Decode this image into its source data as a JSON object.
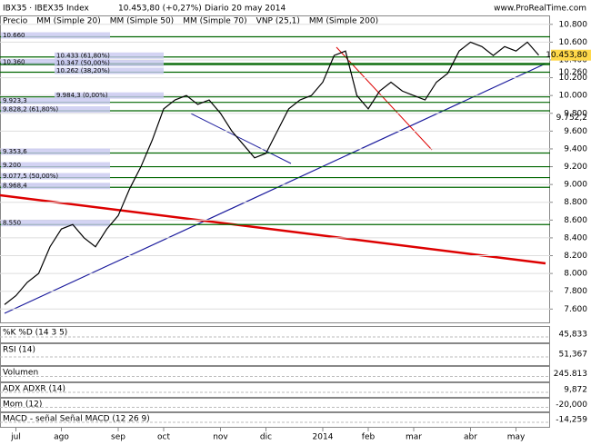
{
  "header": {
    "symbol": "IBX35 · IBEX35 Index",
    "price": "10.453,80 (+0,27%)",
    "date": "Diario 20 may 2014",
    "site": "www.ProRealTime.com"
  },
  "legend": [
    "Precio",
    "MM (Simple 20)",
    "MM (Simple 50)",
    "MM (Simple 70)",
    "VNP (25,1)",
    "MM (Simple 200)"
  ],
  "chart_data": {
    "type": "line",
    "color": "#000000",
    "categories": [
      null,
      "jul",
      null,
      null,
      null,
      "ago",
      null,
      null,
      null,
      null,
      "sep",
      null,
      null,
      null,
      "oct",
      null,
      null,
      null,
      null,
      "nov",
      null,
      null,
      null,
      "dic",
      null,
      null,
      null,
      null,
      "2014",
      null,
      null,
      null,
      "feb",
      null,
      null,
      null,
      "mar",
      null,
      null,
      null,
      null,
      "abr",
      null,
      null,
      null,
      "may",
      null,
      null
    ],
    "values": [
      7650,
      7750,
      7900,
      8000,
      8300,
      8500,
      8550,
      8400,
      8300,
      8500,
      8650,
      8950,
      9200,
      9500,
      9850,
      9950,
      10000,
      9900,
      9950,
      9800,
      9600,
      9450,
      9300,
      9350,
      9600,
      9850,
      9950,
      10000,
      10150,
      10450,
      10500,
      10000,
      9850,
      10050,
      10150,
      10050,
      10000,
      9950,
      10150,
      10250,
      10500,
      10600,
      10550,
      10450,
      10550,
      10500,
      10600,
      10453.8
    ],
    "value_labels": [
      null,
      null,
      null,
      null,
      null,
      null,
      null,
      null,
      null,
      null,
      null,
      null,
      null,
      null,
      null,
      null,
      null,
      null,
      null,
      null,
      null,
      null,
      null,
      null,
      null,
      null,
      null,
      null,
      null,
      null,
      null,
      null,
      null,
      null,
      null,
      null,
      null,
      null,
      null,
      null,
      null,
      null,
      null,
      null,
      null,
      null,
      null,
      "10.453,80"
    ],
    "ylim": [
      7450,
      10900
    ],
    "yticks": [
      {
        "value": 7600,
        "label": "7.600"
      },
      {
        "value": 7800,
        "label": "7.800"
      },
      {
        "value": 8000,
        "label": "8.000"
      },
      {
        "value": 8200,
        "label": "8.200"
      },
      {
        "value": 8400,
        "label": "8.400"
      },
      {
        "value": 8600,
        "label": "8.600"
      },
      {
        "value": 8800,
        "label": "8.800"
      },
      {
        "value": 9000,
        "label": "9.000"
      },
      {
        "value": 9200,
        "label": "9.200"
      },
      {
        "value": 9400,
        "label": "9.400"
      },
      {
        "value": 9600,
        "label": "9.600"
      },
      {
        "value": 9800,
        "label": "9.800"
      },
      {
        "value": 10000,
        "label": "10.000"
      },
      {
        "value": 10200,
        "label": "10.200"
      },
      {
        "value": 10400,
        "label": "10.400"
      },
      {
        "value": 10600,
        "label": "10.600"
      },
      {
        "value": 10800,
        "label": "10.800"
      }
    ],
    "grid": true,
    "levels": [
      {
        "value": 10660,
        "label": "10.660"
      },
      {
        "value": 10433,
        "label": "10.433 (61,80%)"
      },
      {
        "value": 10360,
        "label": "10.360"
      },
      {
        "value": 10347,
        "label": "10.347 (50,00%)"
      },
      {
        "value": 10262,
        "label": "10.262 (38,20%)"
      },
      {
        "value": 9984.3,
        "label": "9.984,3 (0,00%)"
      },
      {
        "value": 9923.3,
        "label": "9.923,3"
      },
      {
        "value": 9828.2,
        "label": "9.828,2 (61,80%)"
      },
      {
        "value": 9353.6,
        "label": "9.353,6"
      },
      {
        "value": 9200,
        "label": "9.200"
      },
      {
        "value": 9077.5,
        "label": "9.077,5 (50,00%)"
      },
      {
        "value": 8968.4,
        "label": "8.968,4"
      },
      {
        "value": 8550,
        "label": "8.550"
      }
    ],
    "right_labels": [
      {
        "value": 10260,
        "label": "10.260"
      },
      {
        "value": 9752.2,
        "label": "9.752,2"
      }
    ]
  },
  "panels": [
    {
      "name": "%K  %D (14 3 5)",
      "value": "45,833"
    },
    {
      "name": "RSI (14)",
      "value": "51,367"
    },
    {
      "name": "Volumen",
      "value": "245.813"
    },
    {
      "name": "ADX  ADXR (14)",
      "value": "9,872"
    },
    {
      "name": "Mom (12)",
      "value": "-20,000"
    },
    {
      "name": "MACD - señal  Señal  MACD (12 26 9)",
      "value": "-14,259"
    }
  ]
}
